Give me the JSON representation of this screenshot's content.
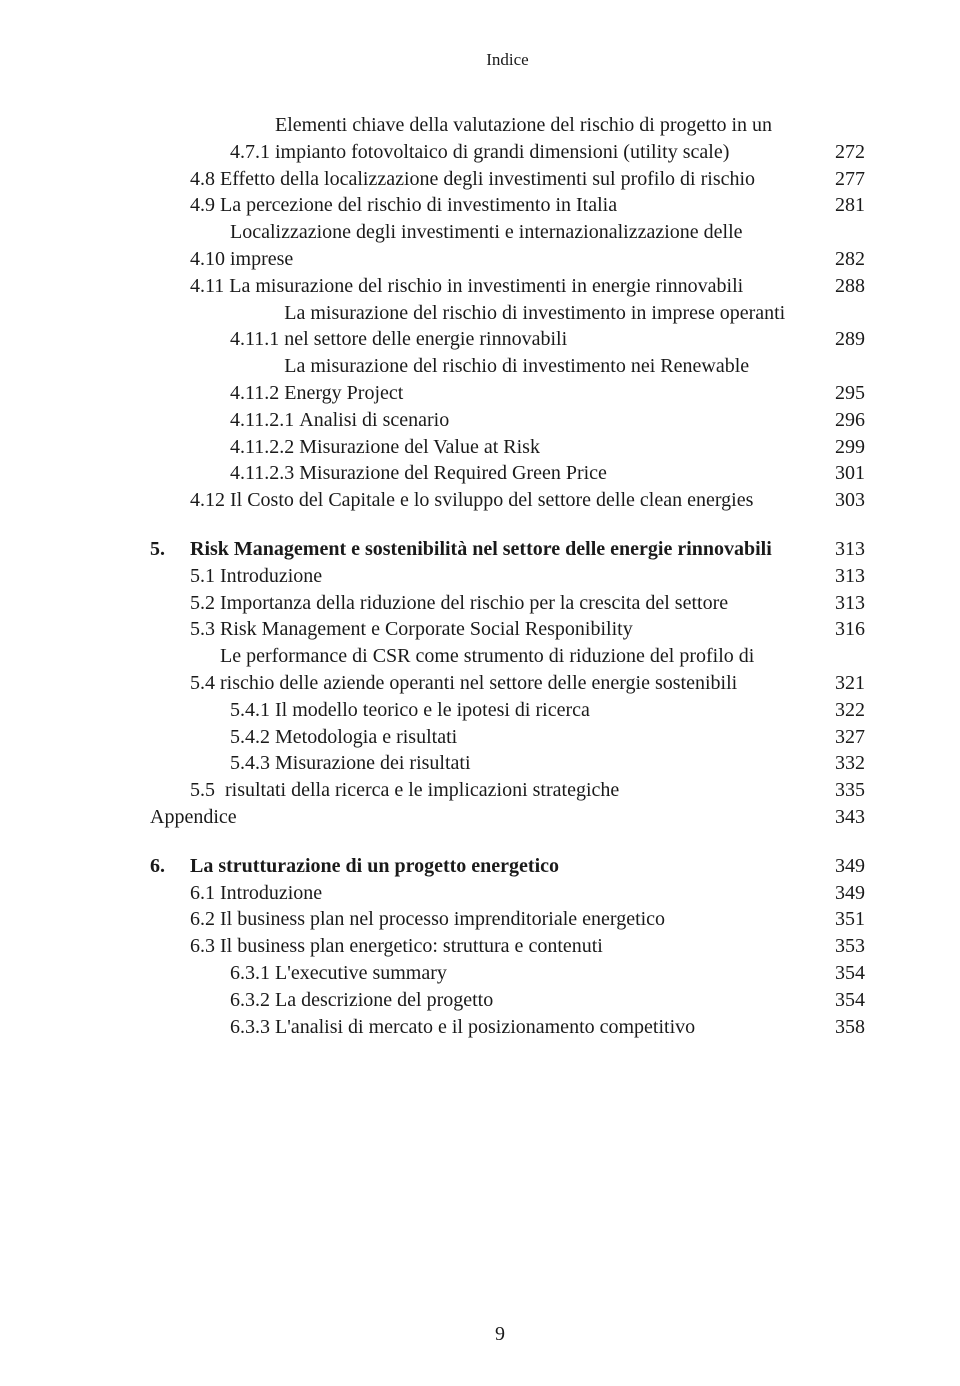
{
  "running_head": "Indice",
  "page_number": "9",
  "entries": [
    {
      "num": "4.7.1",
      "title": "Elementi chiave della valutazione del rischio di progetto in un impianto fotovoltaico di grandi dimensioni (utility scale)",
      "page": "272",
      "indent": "ind1",
      "cont": "cont-ind1"
    },
    {
      "num": "4.8",
      "title": "Effetto della localizzazione degli investimenti sul profilo di rischio",
      "page": "277",
      "indent": "",
      "cont": "cont-base"
    },
    {
      "num": "4.9",
      "title": "La percezione del rischio di investimento in Italia",
      "page": "281",
      "indent": ""
    },
    {
      "num": "4.10",
      "title": "Localizzazione degli investimenti e internazionalizzazione delle imprese",
      "page": "282",
      "indent": "",
      "cont": "cont-base"
    },
    {
      "num": "4.11",
      "title": "La misurazione del rischio in investimenti in energie rinnovabili",
      "page": "288",
      "indent": "",
      "cont": "cont-base"
    },
    {
      "num": "4.11.1",
      "title": "La misurazione del rischio di investimento in imprese operanti nel settore delle energie rinnovabili",
      "page": "289",
      "indent": "ind1",
      "cont": "cont-ind2"
    },
    {
      "num": "4.11.2",
      "title": "La misurazione del rischio di investimento nei Renewable Energy Project",
      "page": "295",
      "indent": "ind1",
      "cont": "cont-ind2"
    },
    {
      "num": "4.11.2.1",
      "title": "Analisi di scenario",
      "page": "296",
      "indent": "ind1"
    },
    {
      "num": "4.11.2.2",
      "title": "Misurazione del Value at Risk",
      "page": "299",
      "indent": "ind1"
    },
    {
      "num": "4.11.2.3",
      "title": "Misurazione del Required Green Price",
      "page": "301",
      "indent": "ind1"
    },
    {
      "num": "4.12",
      "title": "Il Costo del Capitale e lo sviluppo del settore delle clean energies",
      "page": "303",
      "indent": "",
      "cont": "cont-base"
    }
  ],
  "chapter5": {
    "num": "5.",
    "title": "Risk Management e sostenibilità nel settore delle energie rinnovabili",
    "page": "313",
    "items": [
      {
        "num": "5.1",
        "title": "Introduzione",
        "page": "313",
        "indent": ""
      },
      {
        "num": "5.2",
        "title": "Importanza della riduzione del rischio per la crescita del settore",
        "page": "313",
        "indent": "",
        "cont": "cont-base"
      },
      {
        "num": "5.3",
        "title": "Risk Management e Corporate Social Responibility",
        "page": "316",
        "indent": ""
      },
      {
        "num": "5.4",
        "title": "Le performance di CSR come strumento di riduzione del profilo di rischio delle aziende operanti nel settore delle energie sostenibili",
        "page": "321",
        "indent": "",
        "cont": "cont-base"
      },
      {
        "num": "5.4.1",
        "title": "Il modello teorico e le ipotesi di ricerca",
        "page": "322",
        "indent": "ind1"
      },
      {
        "num": "5.4.2",
        "title": "Metodologia e risultati",
        "page": "327",
        "indent": "ind1"
      },
      {
        "num": "5.4.3",
        "title": "Misurazione dei risultati",
        "page": "332",
        "indent": "ind1"
      },
      {
        "num": "5.5",
        "title": "risultati della ricerca e le implicazioni strategiche",
        "page": "335",
        "indent": "",
        "numpad": "5.5  "
      },
      {
        "num": "",
        "title": "Appendice",
        "page": "343",
        "indent": "",
        "nonum": true
      }
    ]
  },
  "chapter6": {
    "num": "6.",
    "title": "La strutturazione di un progetto energetico",
    "page": "349",
    "items": [
      {
        "num": "6.1",
        "title": "Introduzione",
        "page": "349",
        "indent": ""
      },
      {
        "num": "6.2",
        "title": "Il business plan nel processo imprenditoriale energetico",
        "page": "351",
        "indent": ""
      },
      {
        "num": "6.3",
        "title": "Il business plan energetico: struttura e contenuti",
        "page": "353",
        "indent": ""
      },
      {
        "num": "6.3.1",
        "title": "L'executive summary",
        "page": "354",
        "indent": "ind1"
      },
      {
        "num": "6.3.2",
        "title": "La descrizione del progetto",
        "page": "354",
        "indent": "ind1"
      },
      {
        "num": "6.3.3",
        "title": "L'analisi di mercato e il posizionamento competitivo",
        "page": "358",
        "indent": "ind1"
      }
    ]
  }
}
